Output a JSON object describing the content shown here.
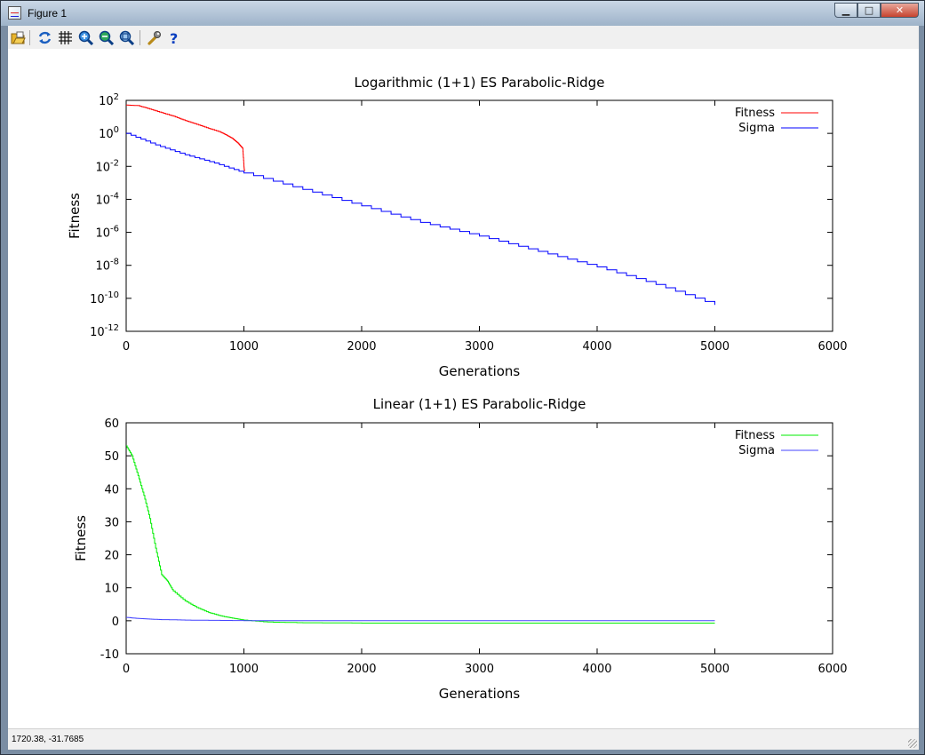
{
  "window": {
    "title": "Figure 1",
    "status": "1720.38, -31.7685"
  },
  "toolbar": {
    "icons": [
      "open-folder-icon",
      "refresh-icon",
      "grid-icon",
      "zoom-in-icon",
      "zoom-out-icon",
      "zoom-fit-icon",
      "settings-wrench-icon",
      "help-icon"
    ],
    "help_glyph": "?"
  },
  "chart_data": [
    {
      "type": "line",
      "title": "Logarithmic (1+1) ES Parabolic-Ridge",
      "xlabel": "Generations",
      "ylabel": "Fitness",
      "xlim": [
        0,
        6000
      ],
      "ylim": [
        1e-12,
        100
      ],
      "yscale": "log",
      "xticks": [
        "0",
        "1000",
        "2000",
        "3000",
        "4000",
        "5000",
        "6000"
      ],
      "yticks": [
        {
          "base": "10",
          "exp": "2"
        },
        {
          "base": "10",
          "exp": "0"
        },
        {
          "base": "10",
          "exp": "-2"
        },
        {
          "base": "10",
          "exp": "-4"
        },
        {
          "base": "10",
          "exp": "-6"
        },
        {
          "base": "10",
          "exp": "-8"
        },
        {
          "base": "10",
          "exp": "-10"
        },
        {
          "base": "10",
          "exp": "-12"
        }
      ],
      "legend": "top-right",
      "series": [
        {
          "name": "Fitness",
          "color": "#ff0000",
          "x": [
            0,
            100,
            200,
            300,
            400,
            500,
            600,
            700,
            800,
            850,
            900,
            950,
            990,
            1000,
            1005
          ],
          "y": [
            52,
            48,
            30,
            18,
            11,
            6,
            3.5,
            2,
            1.2,
            0.8,
            0.5,
            0.25,
            0.12,
            0.01,
            0.005
          ]
        },
        {
          "name": "Sigma",
          "color": "#0000ff",
          "x": [
            0,
            250,
            500,
            750,
            1000,
            1500,
            2000,
            2500,
            3000,
            3500,
            4000,
            4500,
            5000
          ],
          "y": [
            1.0,
            0.2,
            0.05,
            0.016,
            0.004,
            0.0004,
            4e-05,
            4e-06,
            6e-07,
            7e-08,
            8e-09,
            7e-10,
            4e-11
          ]
        }
      ]
    },
    {
      "type": "line",
      "title": "Linear (1+1) ES Parabolic-Ridge",
      "xlabel": "Generations",
      "ylabel": "Fitness",
      "xlim": [
        0,
        6000
      ],
      "ylim": [
        -10,
        60
      ],
      "yscale": "linear",
      "xticks": [
        "0",
        "1000",
        "2000",
        "3000",
        "4000",
        "5000",
        "6000"
      ],
      "yticks": [
        "-10",
        "0",
        "10",
        "20",
        "30",
        "40",
        "50",
        "60"
      ],
      "legend": "top-right",
      "series": [
        {
          "name": "Fitness",
          "color": "#00ee00",
          "x": [
            0,
            50,
            100,
            150,
            200,
            250,
            300,
            350,
            400,
            500,
            600,
            700,
            800,
            900,
            1000,
            1200,
            1500,
            2000,
            3000,
            4000,
            5000
          ],
          "y": [
            53,
            50,
            44,
            38,
            31,
            22,
            14,
            12,
            9,
            6,
            4,
            2.5,
            1.5,
            0.8,
            0.2,
            -0.4,
            -0.6,
            -0.7,
            -0.7,
            -0.7,
            -0.7
          ]
        },
        {
          "name": "Sigma",
          "color": "#4444ff",
          "x": [
            0,
            100,
            200,
            300,
            500,
            800,
            1000,
            2000,
            3000,
            4000,
            5000
          ],
          "y": [
            1.0,
            0.7,
            0.5,
            0.35,
            0.2,
            0.1,
            0.05,
            0.01,
            0.005,
            0.003,
            0.002
          ]
        }
      ]
    }
  ]
}
